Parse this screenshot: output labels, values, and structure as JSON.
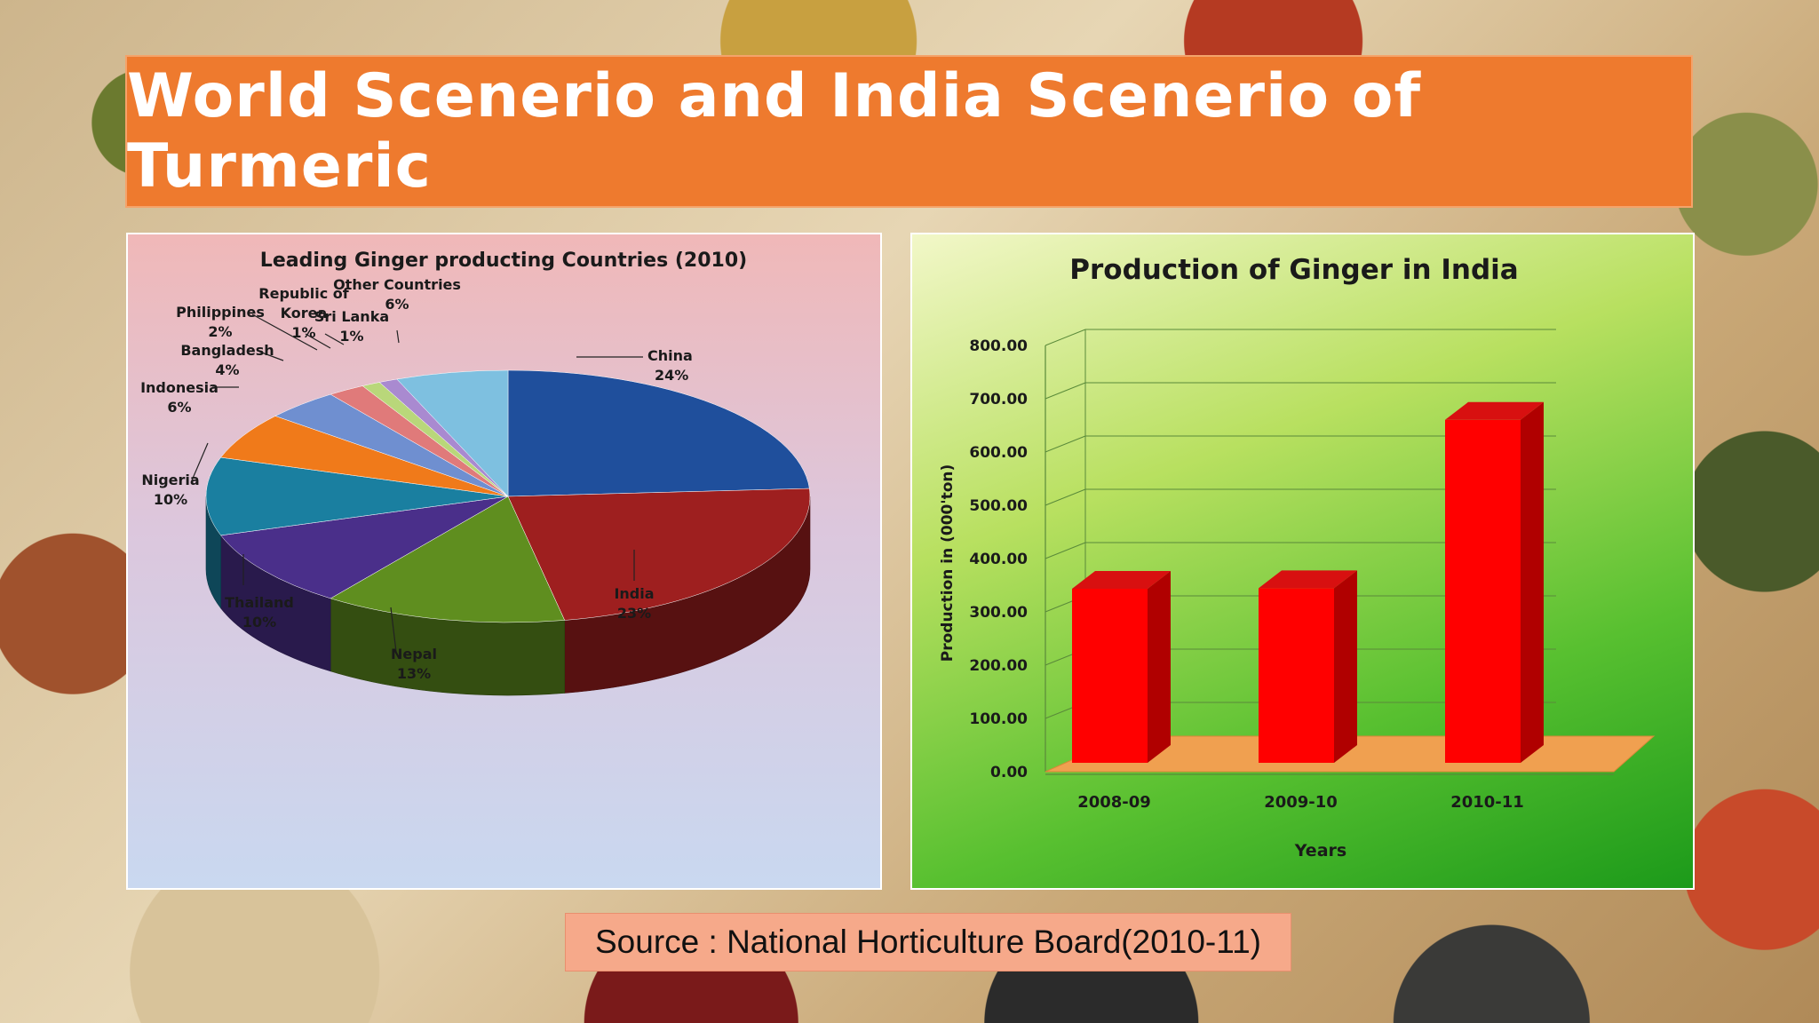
{
  "slide": {
    "title": "World Scenerio and India Scenerio of Turmeric",
    "source": "Source : National Horticulture Board(2010-11)"
  },
  "chart_data": [
    {
      "type": "pie",
      "title": "Leading Ginger producting Countries (2010)",
      "slices": [
        {
          "name": "China",
          "value": 24,
          "label": "24%",
          "color": "#1f4f9c"
        },
        {
          "name": "India",
          "value": 23,
          "label": "23%",
          "color": "#9e1f1f"
        },
        {
          "name": "Nepal",
          "value": 13,
          "label": "13%",
          "color": "#5f8e1f"
        },
        {
          "name": "Thailand",
          "value": 10,
          "label": "10%",
          "color": "#4a2f8a"
        },
        {
          "name": "Nigeria",
          "value": 10,
          "label": "10%",
          "color": "#1a7fa0"
        },
        {
          "name": "Indonesia",
          "value": 6,
          "label": "6%",
          "color": "#f07a1a"
        },
        {
          "name": "Bangladesh",
          "value": 4,
          "label": "4%",
          "color": "#6f8fd0"
        },
        {
          "name": "Philippines",
          "value": 2,
          "label": "2%",
          "color": "#e07a7a"
        },
        {
          "name": "Republic of Korea",
          "value": 1,
          "label": "1%",
          "color": "#b9d77a"
        },
        {
          "name": "Sri Lanka",
          "value": 1,
          "label": "1%",
          "color": "#a98ad0"
        },
        {
          "name": "Other Countries",
          "value": 6,
          "label": "6%",
          "color": "#7ec0e0"
        }
      ]
    },
    {
      "type": "bar",
      "title": "Production of Ginger in India",
      "categories": [
        "2008-09",
        "2009-10",
        "2010-11"
      ],
      "values": [
        385,
        386,
        702
      ],
      "xlabel": "Years",
      "ylabel": "Production in (000'ton)",
      "ylim": [
        0,
        800
      ],
      "yticks": [
        "0.00",
        "100.00",
        "200.00",
        "300.00",
        "400.00",
        "500.00",
        "600.00",
        "700.00",
        "800.00"
      ],
      "bar_color": "#ff0000",
      "floor_color": "#f0a050",
      "grid": true
    }
  ]
}
